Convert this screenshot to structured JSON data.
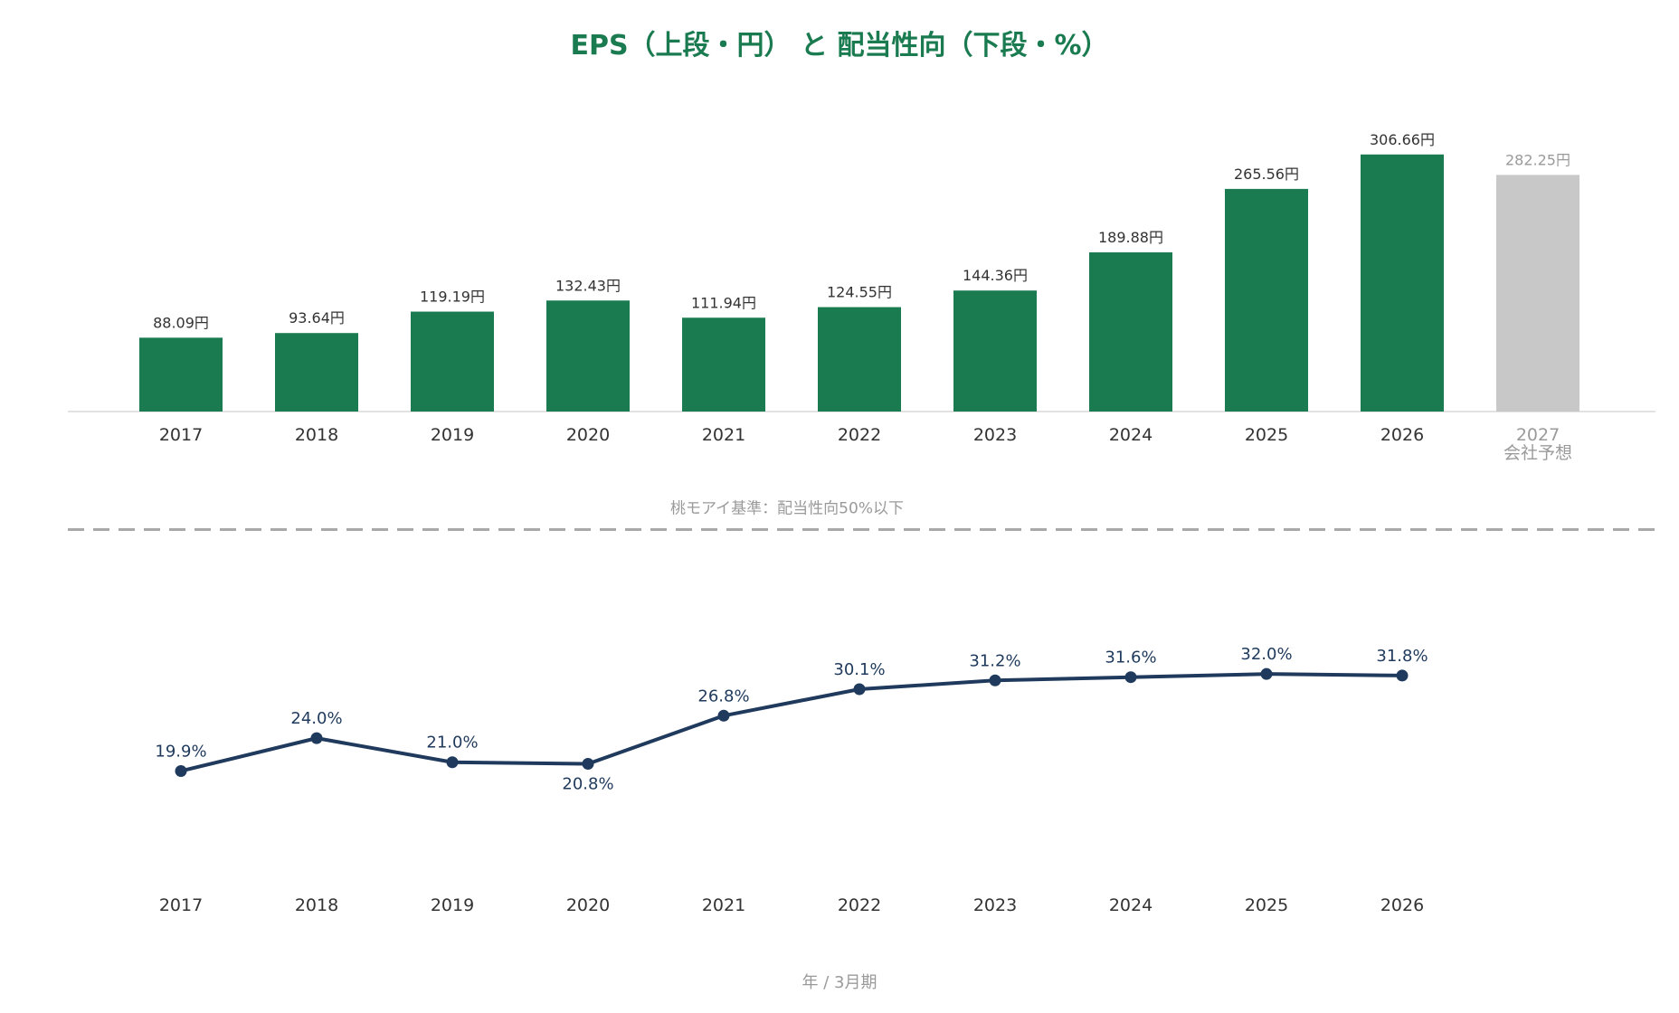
{
  "chart_data": {
    "title": "EPS（上段・円） と 配当性向（下段・%）",
    "x_axis_title": "年 / 3月期",
    "eps": {
      "type": "bar",
      "categories": [
        "2017",
        "2018",
        "2019",
        "2020",
        "2021",
        "2022",
        "2023",
        "2024",
        "2025",
        "2026",
        "2027"
      ],
      "category_sublabels": [
        "",
        "",
        "",
        "",
        "",
        "",
        "",
        "",
        "",
        "",
        "会社予想"
      ],
      "values": [
        88.09,
        93.64,
        119.19,
        132.43,
        111.94,
        124.55,
        144.36,
        189.88,
        265.56,
        306.66,
        282.25
      ],
      "value_labels": [
        "88.09円",
        "93.64円",
        "119.19円",
        "132.43円",
        "111.94円",
        "124.55円",
        "144.36円",
        "189.88円",
        "265.56円",
        "306.66円",
        "282.25円"
      ],
      "forecast_index": 10,
      "colors": {
        "actual": "#1b7b50",
        "forecast": "#c8c8c8"
      }
    },
    "payout": {
      "type": "line",
      "categories": [
        "2017",
        "2018",
        "2019",
        "2020",
        "2021",
        "2022",
        "2023",
        "2024",
        "2025",
        "2026"
      ],
      "values": [
        19.9,
        24.0,
        21.0,
        20.8,
        26.8,
        30.1,
        31.2,
        31.6,
        32.0,
        31.8
      ],
      "value_labels": [
        "19.9%",
        "24.0%",
        "21.0%",
        "20.8%",
        "26.8%",
        "30.1%",
        "31.2%",
        "31.6%",
        "32.0%",
        "31.8%"
      ],
      "color": "#1f3a5c",
      "reference_line": {
        "value": 50,
        "label": "桃モアイ基準：配当性向50%以下"
      }
    }
  }
}
